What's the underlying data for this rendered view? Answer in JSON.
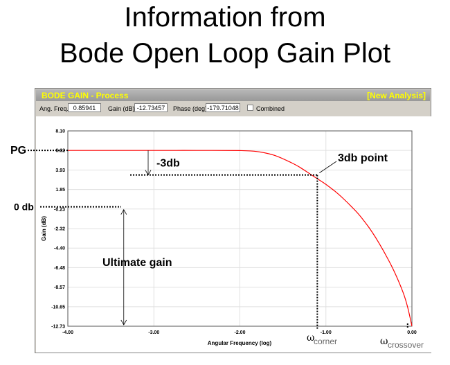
{
  "slide": {
    "title_line1": "Information from",
    "title_line2": "Bode Open Loop Gain Plot"
  },
  "window": {
    "title": "BODE GAIN - Process",
    "action_link": "[New Analysis]",
    "title_color": "#ffff00"
  },
  "status": {
    "ang_freq_label": "Ang. Freq.",
    "ang_freq_value": "0.85941",
    "gain_label": "Gain (dB)",
    "gain_value": "-12.73457",
    "phase_label": "Phase (deg)",
    "phase_value": "-179.71048",
    "combined_label": "Combined",
    "combined_checked": false
  },
  "annotations": {
    "pg": "PG",
    "zero_db": "0 db",
    "minus3db": "-3db",
    "point3db": "3db point",
    "ultimate_gain": "Ultimate gain",
    "omega_symbol": "ω",
    "corner_sub": "corner",
    "crossover_sub": "crossover"
  },
  "chart_data": {
    "type": "line",
    "xlabel": "Angular Frequency (log)",
    "ylabel": "Gain (dB)",
    "xlim": [
      -4.0,
      0.0
    ],
    "ylim": [
      -12.73,
      8.1
    ],
    "x_ticks": [
      "-4.00",
      "-3.00",
      "-2.00",
      "-1.00",
      "0.00"
    ],
    "y_ticks": [
      "8.10",
      "6.02",
      "3.93",
      "1.85",
      "-0.23",
      "-2.32",
      "-4.40",
      "-6.48",
      "-8.57",
      "-10.65",
      "-12.73"
    ],
    "grid": true,
    "line_color": "#ff0000",
    "series": [
      {
        "x": [
          -4.0,
          -3.5,
          -3.0,
          -2.5,
          -2.0,
          -1.8,
          -1.6,
          -1.4,
          -1.3,
          -1.2,
          -1.1,
          -1.0,
          -0.9,
          -0.8,
          -0.7,
          -0.6,
          -0.5,
          -0.4,
          -0.3,
          -0.2,
          -0.1,
          -0.05,
          0.0
        ],
        "y": [
          6.02,
          6.02,
          6.02,
          6.02,
          6.0,
          5.9,
          5.5,
          4.7,
          4.2,
          3.6,
          3.0,
          2.4,
          1.7,
          0.9,
          0.0,
          -1.0,
          -2.2,
          -3.6,
          -5.2,
          -7.0,
          -9.2,
          -10.7,
          -12.73
        ]
      }
    ],
    "markers": {
      "pg_value": 6.02,
      "minus3db_value": 3.4,
      "zero_db_value": 0.0,
      "corner_x": -1.1,
      "crossover_x": -0.05,
      "ultimate_gain_x": -3.35
    }
  }
}
